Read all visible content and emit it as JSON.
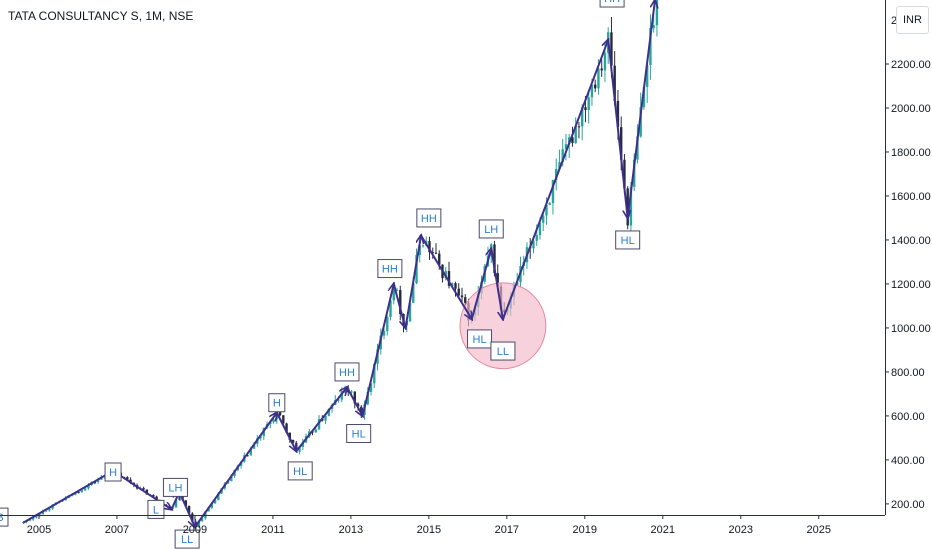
{
  "chart_title": "TATA CONSULTANCY S, 1M, NSE",
  "currency_badge": "INR",
  "chart_data": {
    "type": "candlestick",
    "title": "TATA CONSULTANCY S, 1M, NSE",
    "xlabel": "",
    "ylabel": "",
    "x_ticks": [
      "2005",
      "2007",
      "2009",
      "2011",
      "2013",
      "2015",
      "2017",
      "2019",
      "2021",
      "2023",
      "2025"
    ],
    "y_ticks": [
      "200.00",
      "400.00",
      "600.00",
      "800.00",
      "1000.00",
      "1200.00",
      "1400.00",
      "1600.00",
      "1800.00",
      "2000.00",
      "2200.00"
    ],
    "y_tick_values": [
      200,
      400,
      600,
      800,
      1000,
      1200,
      1400,
      1600,
      1800,
      2000,
      2200
    ],
    "partial_top_tick": "2...0",
    "xlim": [
      2004.0,
      2026.7
    ],
    "ylim": [
      50,
      2500
    ],
    "grid": false,
    "colors": {
      "up": "#26a69a",
      "down": "#262b3e",
      "wave": "#3f2f8c",
      "label_text": "#2a7fd4",
      "highlight": "#f3b8c8"
    },
    "wave_path": [
      {
        "x": 2004.6,
        "y": 115
      },
      {
        "x": 2006.9,
        "y": 350
      },
      {
        "x": 2008.4,
        "y": 175
      },
      {
        "x": 2008.6,
        "y": 255
      },
      {
        "x": 2009.0,
        "y": 95
      },
      {
        "x": 2011.1,
        "y": 615
      },
      {
        "x": 2011.6,
        "y": 440
      },
      {
        "x": 2012.9,
        "y": 730
      },
      {
        "x": 2013.3,
        "y": 600
      },
      {
        "x": 2014.1,
        "y": 1200
      },
      {
        "x": 2014.4,
        "y": 1000
      },
      {
        "x": 2014.8,
        "y": 1420
      },
      {
        "x": 2016.1,
        "y": 1040
      },
      {
        "x": 2016.6,
        "y": 1360
      },
      {
        "x": 2016.9,
        "y": 1040
      },
      {
        "x": 2019.6,
        "y": 2310
      },
      {
        "x": 2020.1,
        "y": 1500
      },
      {
        "x": 2020.8,
        "y": 2490
      }
    ],
    "pivot_labels": [
      {
        "text": "B",
        "x": 2004.0,
        "y": 140
      },
      {
        "text": "H",
        "x": 2006.9,
        "y": 345
      },
      {
        "text": "L",
        "x": 2008.0,
        "y": 175
      },
      {
        "text": "LH",
        "x": 2008.5,
        "y": 275
      },
      {
        "text": "LL",
        "x": 2008.8,
        "y": 40
      },
      {
        "text": "H",
        "x": 2011.1,
        "y": 660
      },
      {
        "text": "HL",
        "x": 2011.7,
        "y": 350
      },
      {
        "text": "HH",
        "x": 2012.9,
        "y": 800
      },
      {
        "text": "HL",
        "x": 2013.2,
        "y": 520
      },
      {
        "text": "HH",
        "x": 2014.0,
        "y": 1270
      },
      {
        "text": "HH",
        "x": 2015.0,
        "y": 1500
      },
      {
        "text": "HL",
        "x": 2016.3,
        "y": 950
      },
      {
        "text": "LH",
        "x": 2016.6,
        "y": 1450
      },
      {
        "text": "LL",
        "x": 2016.9,
        "y": 895
      },
      {
        "text": "HH",
        "x": 2019.7,
        "y": 2500
      },
      {
        "text": "HL",
        "x": 2020.1,
        "y": 1400
      }
    ],
    "highlight_circle": {
      "x": 2016.9,
      "y": 1010,
      "r_years": 1.1
    }
  }
}
